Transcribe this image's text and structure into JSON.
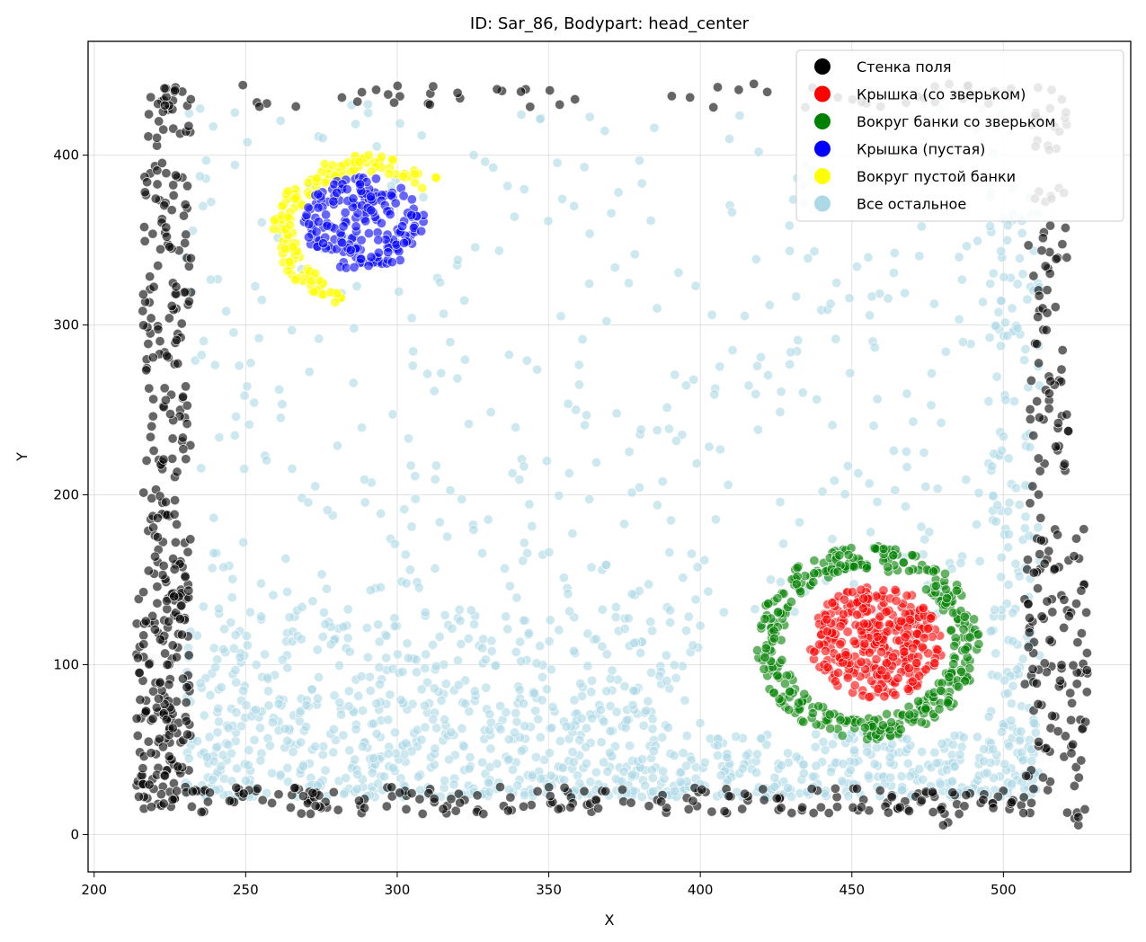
{
  "chart_data": {
    "type": "scatter",
    "title": "ID: Sar_86, Bodypart: head_center",
    "xlabel": "X",
    "ylabel": "Y",
    "xlim": [
      198,
      542
    ],
    "ylim": [
      -22,
      467
    ],
    "xticks": [
      200,
      250,
      300,
      350,
      400,
      450,
      500
    ],
    "yticks": [
      0,
      100,
      200,
      300,
      400
    ],
    "grid": true,
    "legend_position": "top-right",
    "series": [
      {
        "name": "Стенка поля",
        "color": "#000000",
        "opacity": 0.6,
        "segments": [
          {
            "x0": 214,
            "y0": 15,
            "x1": 232,
            "y1": 150,
            "n": 170
          },
          {
            "x0": 216,
            "y0": 150,
            "x1": 232,
            "y1": 440,
            "n": 190
          },
          {
            "x0": 230,
            "y0": 12,
            "x1": 510,
            "y1": 28,
            "n": 210
          },
          {
            "x0": 475,
            "y0": 5,
            "x1": 485,
            "y1": 15,
            "n": 4
          },
          {
            "x0": 222,
            "y0": 428,
            "x1": 512,
            "y1": 442,
            "n": 60
          },
          {
            "x0": 507,
            "y0": 25,
            "x1": 528,
            "y1": 180,
            "n": 110
          },
          {
            "x0": 508,
            "y0": 180,
            "x1": 522,
            "y1": 440,
            "n": 90
          },
          {
            "x0": 520,
            "y0": 0,
            "x1": 528,
            "y1": 20,
            "n": 6
          }
        ]
      },
      {
        "name": "Крышка (со зверьком)",
        "color": "#ff0000",
        "opacity": 0.6,
        "clusters": [
          {
            "cx": 458,
            "cy": 113,
            "rx": 22,
            "ry": 33,
            "n": 330,
            "shape": "disc"
          }
        ]
      },
      {
        "name": "Вокруг банки со зверьком",
        "color": "#008000",
        "opacity": 0.6,
        "clusters": [
          {
            "cx": 455,
            "cy": 113,
            "rx": 37,
            "ry": 57,
            "n": 380,
            "shape": "ring",
            "width": 10
          }
        ]
      },
      {
        "name": "Крышка (пустая)",
        "color": "#0000ff",
        "opacity": 0.6,
        "clusters": [
          {
            "cx": 289,
            "cy": 360,
            "rx": 20,
            "ry": 28,
            "n": 190,
            "shape": "disc"
          }
        ]
      },
      {
        "name": "Вокруг пустой банки",
        "color": "#ffff00",
        "opacity": 0.7,
        "clusters": [
          {
            "cx": 291,
            "cy": 355,
            "rx": 32,
            "ry": 45,
            "n": 150,
            "shape": "arc",
            "width": 7
          }
        ]
      },
      {
        "name": "Все остальное",
        "color": "#add8e6",
        "opacity": 0.6,
        "regions": [
          {
            "x0": 230,
            "y0": 22,
            "x1": 512,
            "y1": 60,
            "n": 650
          },
          {
            "x0": 230,
            "y0": 60,
            "x1": 400,
            "y1": 130,
            "n": 380
          },
          {
            "x0": 230,
            "y0": 130,
            "x1": 512,
            "y1": 430,
            "n": 420
          },
          {
            "x0": 495,
            "y0": 60,
            "x1": 512,
            "y1": 380,
            "n": 140
          }
        ]
      }
    ]
  }
}
